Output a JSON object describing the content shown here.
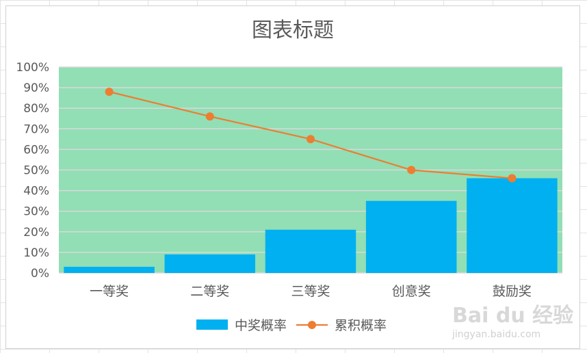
{
  "chart_data": {
    "type": "bar",
    "title": "图表标题",
    "categories": [
      "一等奖",
      "二等奖",
      "三等奖",
      "创意奖",
      "鼓励奖"
    ],
    "series": [
      {
        "name": "中奖概率",
        "type": "bar",
        "values": [
          0.03,
          0.09,
          0.21,
          0.35,
          0.46
        ],
        "color": "#00B0F0"
      },
      {
        "name": "累积概率",
        "type": "line",
        "values": [
          0.88,
          0.76,
          0.65,
          0.5,
          0.46
        ],
        "color": "#ED7D31"
      }
    ],
    "ylim": [
      0,
      1
    ],
    "yticks": [
      "0%",
      "10%",
      "20%",
      "30%",
      "40%",
      "50%",
      "60%",
      "70%",
      "80%",
      "90%",
      "100%"
    ],
    "plot_background": "#92DEB5",
    "grid": true,
    "legend": "bottom"
  },
  "watermark": {
    "brand": "Bai du 经验",
    "url": "jingyan.baidu.com"
  }
}
